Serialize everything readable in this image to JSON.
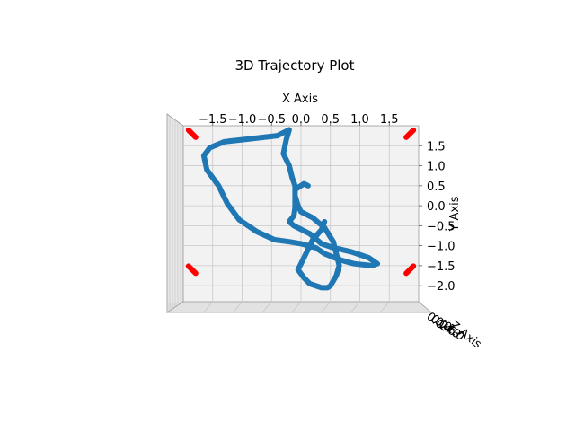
{
  "chart_data": {
    "type": "line",
    "title": "3D Trajectory Plot",
    "xlabel": "X Axis",
    "ylabel": "Y Axis",
    "zlabel": "Z Axis",
    "x_ticks": [
      "−1.5",
      "−1.0",
      "−0.5",
      "0.0",
      "0.5",
      "1.0",
      "1.5"
    ],
    "x_tick_values": [
      -1.5,
      -1.0,
      -0.5,
      0.0,
      0.5,
      1.0,
      1.5
    ],
    "y_ticks": [
      "1.5",
      "1.0",
      "0.5",
      "0.0",
      "−0.5",
      "−1.0",
      "−1.5",
      "−2.0"
    ],
    "y_tick_values": [
      1.5,
      1.0,
      0.5,
      0.0,
      -0.5,
      -1.0,
      -1.5,
      -2.0
    ],
    "z_ticks": [
      "0.0",
      "0.2",
      "0.4",
      "0.6",
      "0.8",
      "1.0"
    ],
    "xlim": [
      -2.0,
      2.0
    ],
    "ylim": [
      -2.4,
      2.0
    ],
    "grid": true,
    "colors": {
      "trajectory": "#1f77b4",
      "markers": "#ff0000",
      "pane": "#f2f2f2",
      "grid": "#c8c8c8"
    },
    "series": [
      {
        "x": [
          0.12,
          0.05,
          0.0,
          -0.05,
          -0.1,
          -0.1,
          -0.1,
          -0.1,
          -0.12,
          -0.2,
          -0.12,
          0.15,
          0.35,
          0.55,
          0.85,
          1.15,
          1.3,
          1.2,
          0.9,
          0.65,
          0.4,
          0.25,
          0.0,
          -0.2,
          -0.45,
          -0.75,
          -1.05,
          -1.25,
          -1.4,
          -1.6,
          -1.65,
          -1.55,
          -1.3,
          -1.0,
          -0.7,
          -0.4,
          -0.2,
          -0.25,
          -0.3,
          -0.2,
          -0.15,
          -0.1,
          -0.1,
          -0.05,
          0.0,
          0.2,
          0.4,
          0.55,
          0.6,
          0.65,
          0.6,
          0.5,
          0.45,
          0.35,
          0.15,
          0.05,
          -0.05,
          0.05,
          0.15,
          0.2,
          0.35,
          0.4
        ],
        "y": [
          0.5,
          0.55,
          0.5,
          0.45,
          0.4,
          0.2,
          0.1,
          -0.05,
          -0.25,
          -0.4,
          -0.5,
          -0.7,
          -0.95,
          -1.05,
          -1.15,
          -1.3,
          -1.45,
          -1.5,
          -1.45,
          -1.35,
          -1.2,
          -1.05,
          -0.95,
          -0.9,
          -0.85,
          -0.65,
          -0.35,
          0.05,
          0.5,
          0.9,
          1.25,
          1.45,
          1.6,
          1.65,
          1.7,
          1.75,
          1.9,
          1.65,
          1.3,
          1.0,
          0.7,
          0.5,
          0.25,
          0.0,
          -0.15,
          -0.3,
          -0.55,
          -0.9,
          -1.2,
          -1.5,
          -1.75,
          -2.0,
          -2.05,
          -2.05,
          -1.95,
          -1.8,
          -1.6,
          -1.3,
          -1.0,
          -0.85,
          -0.6,
          -0.4
        ]
      }
    ],
    "markers": [
      {
        "x": -1.85,
        "y": 1.8
      },
      {
        "x": 1.85,
        "y": 1.8
      },
      {
        "x": -1.85,
        "y": -1.6
      },
      {
        "x": 1.85,
        "y": -1.6
      }
    ]
  }
}
